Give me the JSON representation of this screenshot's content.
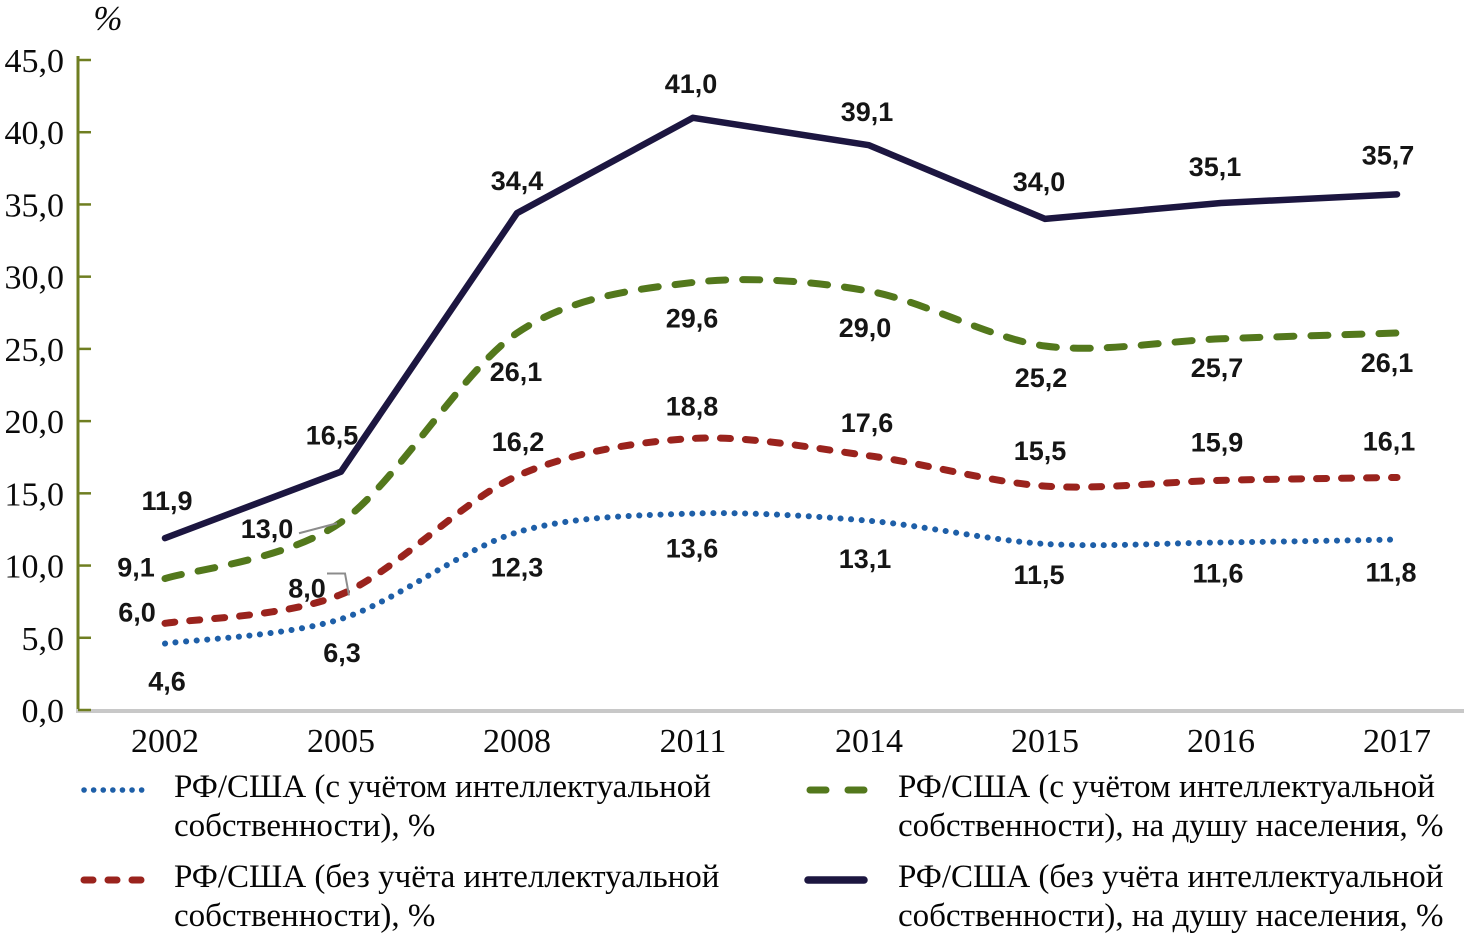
{
  "page": {
    "background": "#ffffff"
  },
  "chart_data": {
    "type": "line",
    "title": "",
    "xlabel": "",
    "ylabel": "%",
    "grid": "off",
    "legend_position": "bottom-two-columns",
    "categories": [
      "2002",
      "2005",
      "2008",
      "2011",
      "2014",
      "2015",
      "2016",
      "2017"
    ],
    "y_axis": {
      "min": 0,
      "max": 45,
      "step": 5,
      "tick_labels": [
        "0,0",
        "5,0",
        "10,0",
        "15,0",
        "20,0",
        "25,0",
        "30,0",
        "35,0",
        "40,0",
        "45,0"
      ]
    },
    "series": [
      {
        "name": "РФ/США (с учётом интеллектуальной собственности), %",
        "legend_lines": [
          "РФ/США (с учётом интеллектуальной",
          "собственности), %"
        ],
        "color": "#1e5fa8",
        "line_style": "dotted",
        "values": [
          4.6,
          6.3,
          12.3,
          13.6,
          13.1,
          11.5,
          11.6,
          11.8
        ],
        "point_labels": [
          "4,6",
          "6,3",
          "12,3",
          "13,6",
          "13,1",
          "11,5",
          "11,6",
          "11,8"
        ],
        "label_offsets": [
          [
            2,
            47
          ],
          [
            1,
            43
          ],
          [
            0,
            44
          ],
          [
            -1,
            44
          ],
          [
            -4,
            47
          ],
          [
            -6,
            40
          ],
          [
            -3,
            40
          ],
          [
            -6,
            42
          ]
        ]
      },
      {
        "name": "РФ/США (с учётом интеллектуальной собственности), на душу населения, %",
        "legend_lines": [
          "РФ/США (с учётом интеллектуальной",
          "собственности), на душу населения, %"
        ],
        "color": "#53781c",
        "line_style": "dashed-long",
        "values": [
          9.1,
          13.0,
          26.1,
          29.6,
          29.0,
          25.2,
          25.7,
          26.1
        ],
        "point_labels": [
          "9,1",
          "13,0",
          "26,1",
          "29,6",
          "29,0",
          "25,2",
          "25,7",
          "26,1"
        ],
        "label_offsets": [
          [
            -29,
            -2
          ],
          [
            -74,
            16
          ],
          [
            -1,
            48
          ],
          [
            -1,
            45
          ],
          [
            -4,
            46
          ],
          [
            -4,
            41
          ],
          [
            -4,
            38
          ],
          [
            -10,
            39
          ]
        ],
        "callout": {
          "point": 1,
          "shape": "diagonal"
        }
      },
      {
        "name": "РФ/США (без учёта интеллектуальной собственности), %",
        "legend_lines": [
          "РФ/США (без учёта интеллектуальной",
          "собственности), %"
        ],
        "color": "#9a231d",
        "line_style": "dashed-short",
        "values": [
          6.0,
          8.0,
          16.2,
          18.8,
          17.6,
          15.5,
          15.9,
          16.1
        ],
        "point_labels": [
          "6,0",
          "8,0",
          "16,2",
          "18,8",
          "17,6",
          "15,5",
          "15,9",
          "16,1"
        ],
        "label_offsets": [
          [
            -28,
            -2
          ],
          [
            -34,
            3
          ],
          [
            1,
            -25
          ],
          [
            -1,
            -23
          ],
          [
            -2,
            -24
          ],
          [
            -5,
            -26
          ],
          [
            -4,
            -29
          ],
          [
            -8,
            -27
          ]
        ],
        "callout": {
          "point": 1,
          "shape": "elbow"
        }
      },
      {
        "name": "РФ/США (без учёта интеллектуальной собственности), на душу населения, %",
        "legend_lines": [
          "РФ/США (без учёта интеллектуальной",
          "собственности), на душу населения, %"
        ],
        "color": "#1c1640",
        "line_style": "solid",
        "values": [
          11.9,
          16.5,
          34.4,
          41.0,
          39.1,
          34.0,
          35.1,
          35.7
        ],
        "point_labels": [
          "11,9",
          "16,5",
          "34,4",
          "41,0",
          "39,1",
          "34,0",
          "35,1",
          "35,7"
        ],
        "label_offsets": [
          [
            2,
            -28
          ],
          [
            -9,
            -27
          ],
          [
            0,
            -23
          ],
          [
            -2,
            -25
          ],
          [
            -2,
            -24
          ],
          [
            -6,
            -28
          ],
          [
            -6,
            -27
          ],
          [
            -9,
            -30
          ]
        ]
      }
    ],
    "colors": {
      "y_axis": "#6f7e21",
      "x_axis": "#c8c8c8",
      "data_label": "#151515",
      "leader": "#8c8c8c"
    }
  }
}
